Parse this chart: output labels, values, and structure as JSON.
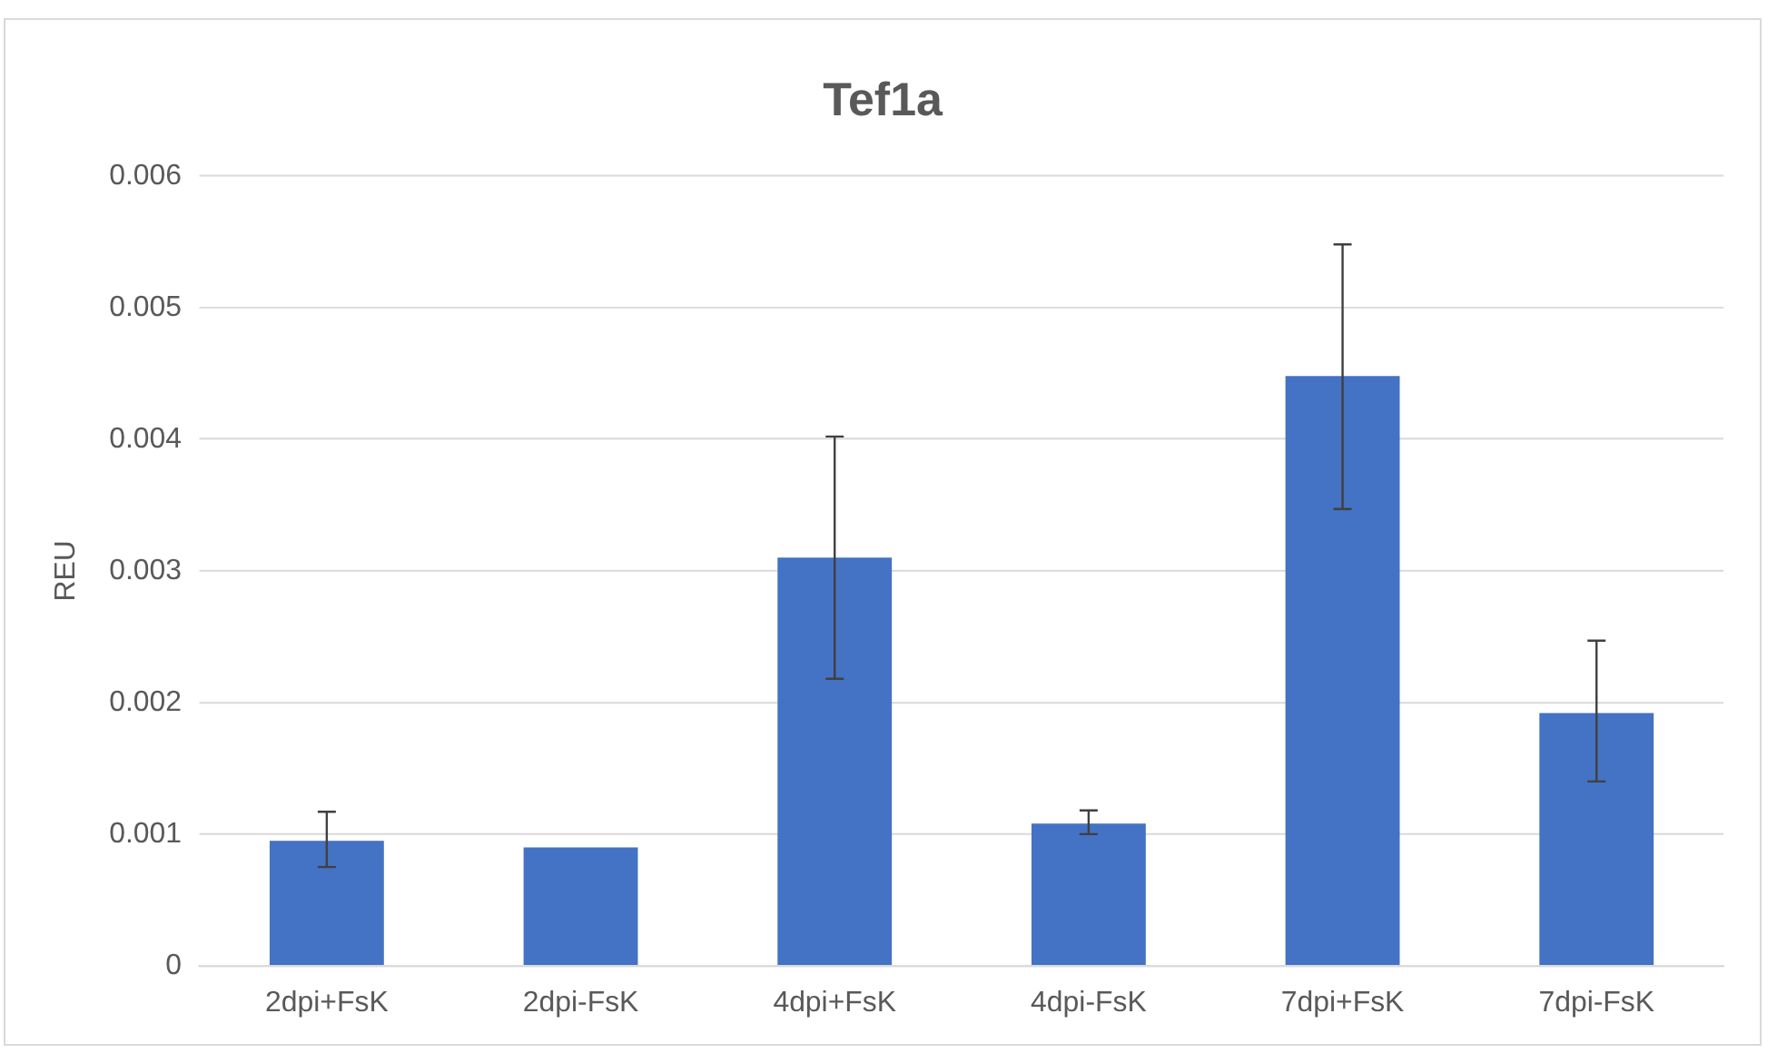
{
  "chart_data": {
    "type": "bar",
    "title": "Tef1a",
    "ylabel": "REU",
    "categories": [
      "2dpi+FsK",
      "2dpi-FsK",
      "4dpi+FsK",
      "4dpi-FsK",
      "7dpi+FsK",
      "7dpi-FsK"
    ],
    "values": [
      0.00095,
      0.0009,
      0.0031,
      0.00108,
      0.00448,
      0.00192
    ],
    "errors": [
      [
        0.00075,
        0.00117
      ],
      null,
      [
        0.00218,
        0.00402
      ],
      [
        0.001,
        0.00118
      ],
      [
        0.00347,
        0.00548
      ],
      [
        0.0014,
        0.00247
      ]
    ],
    "color": "#4472c4",
    "ylim": [
      0,
      0.006
    ],
    "yticks": [
      0,
      0.001,
      0.002,
      0.003,
      0.004,
      0.005,
      0.006
    ],
    "grid": "y",
    "legend": false
  }
}
